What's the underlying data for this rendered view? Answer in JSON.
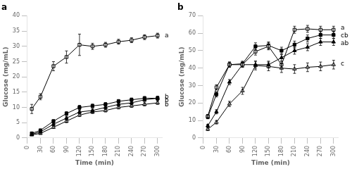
{
  "chart_data": [
    {
      "type": "line",
      "title": "a",
      "xlabel": "Time (min)",
      "ylabel": "Glucose (mg/mL)",
      "x": [
        10,
        30,
        60,
        90,
        120,
        150,
        180,
        210,
        240,
        270,
        300
      ],
      "xlim": [
        0,
        310
      ],
      "xticks": [
        0,
        30,
        60,
        90,
        120,
        150,
        180,
        210,
        240,
        270,
        300
      ],
      "ylim": [
        0,
        40
      ],
      "yticks": [
        0,
        5,
        10,
        15,
        20,
        25,
        30,
        35,
        40
      ],
      "grid": false,
      "color": "#000000",
      "series": [
        {
          "marker": "open_square",
          "values": [
            9.5,
            13.5,
            23.5,
            26.5,
            30.5,
            30.0,
            30.5,
            31.5,
            32.0,
            33.0,
            33.5
          ],
          "errors": [
            1.5,
            1.0,
            1.5,
            2.0,
            3.5,
            1.0,
            0.8,
            0.8,
            0.8,
            0.8,
            0.8
          ]
        },
        {
          "marker": "square",
          "values": [
            1.5,
            2.5,
            5.5,
            8.0,
            10.0,
            10.5,
            11.0,
            12.0,
            12.5,
            13.0,
            13.0
          ],
          "errors": [
            0.3,
            0.4,
            0.5,
            0.6,
            0.7,
            0.6,
            0.6,
            0.6,
            0.6,
            0.6,
            0.7
          ]
        },
        {
          "marker": "triangle",
          "values": [
            1.2,
            2.0,
            4.5,
            6.5,
            8.5,
            9.0,
            10.0,
            11.0,
            11.5,
            12.5,
            13.0
          ],
          "errors": [
            0.3,
            0.4,
            0.5,
            0.6,
            0.6,
            0.6,
            0.6,
            0.6,
            0.6,
            0.6,
            0.6
          ]
        },
        {
          "marker": "open_triangle",
          "values": [
            1.0,
            1.5,
            3.5,
            5.5,
            7.5,
            8.5,
            9.0,
            10.0,
            10.5,
            11.0,
            11.5
          ],
          "errors": [
            0.2,
            0.3,
            0.4,
            0.5,
            0.5,
            0.5,
            0.5,
            0.5,
            0.5,
            0.5,
            0.5
          ]
        }
      ],
      "annotations": [
        {
          "text": "a",
          "y": 33.5
        },
        {
          "text": "b",
          "y": 13.5
        },
        {
          "text": "b",
          "y": 12.2
        },
        {
          "text": "b",
          "y": 11.0
        }
      ]
    },
    {
      "type": "line",
      "title": "b",
      "xlabel": "Time (min)",
      "ylabel": "Glucose (mg/mL)",
      "x": [
        10,
        30,
        60,
        90,
        120,
        150,
        180,
        210,
        240,
        270,
        300
      ],
      "xlim": [
        0,
        310
      ],
      "xticks": [
        0,
        30,
        60,
        90,
        120,
        150,
        180,
        210,
        240,
        270,
        300
      ],
      "ylim": [
        0,
        70
      ],
      "yticks": [
        0,
        10,
        20,
        30,
        40,
        50,
        60,
        70
      ],
      "grid": false,
      "color": "#000000",
      "series": [
        {
          "marker": "open_square",
          "values": [
            12.5,
            29.0,
            42.0,
            42.0,
            49.5,
            52.5,
            42.0,
            62.0,
            62.5,
            62.0,
            62.0
          ],
          "errors": [
            1.0,
            1.5,
            1.5,
            1.5,
            2.0,
            2.0,
            2.0,
            2.0,
            2.0,
            2.0,
            2.0
          ]
        },
        {
          "marker": "square",
          "values": [
            12.0,
            25.0,
            42.0,
            42.5,
            52.5,
            53.0,
            50.0,
            53.5,
            57.0,
            59.0,
            59.0
          ],
          "errors": [
            1.0,
            1.5,
            1.5,
            1.5,
            2.0,
            2.0,
            2.0,
            2.0,
            2.0,
            2.0,
            2.0
          ]
        },
        {
          "marker": "triangle",
          "values": [
            7.0,
            15.0,
            32.0,
            42.0,
            42.0,
            42.0,
            46.0,
            50.0,
            52.0,
            55.0,
            55.0
          ],
          "errors": [
            0.8,
            1.2,
            1.5,
            1.5,
            2.0,
            2.0,
            2.0,
            2.0,
            2.0,
            2.0,
            2.0
          ]
        },
        {
          "marker": "open_triangle",
          "values": [
            5.0,
            9.0,
            19.5,
            27.0,
            41.5,
            41.0,
            40.0,
            39.5,
            40.5,
            41.0,
            42.0
          ],
          "errors": [
            0.8,
            1.0,
            1.5,
            2.0,
            2.5,
            2.5,
            2.5,
            2.5,
            2.5,
            2.5,
            2.5
          ]
        }
      ],
      "annotations": [
        {
          "text": "a",
          "y": 63.0
        },
        {
          "text": "cb",
          "y": 58.5
        },
        {
          "text": "ab",
          "y": 54.0
        },
        {
          "text": "c",
          "y": 42.5
        }
      ]
    }
  ]
}
